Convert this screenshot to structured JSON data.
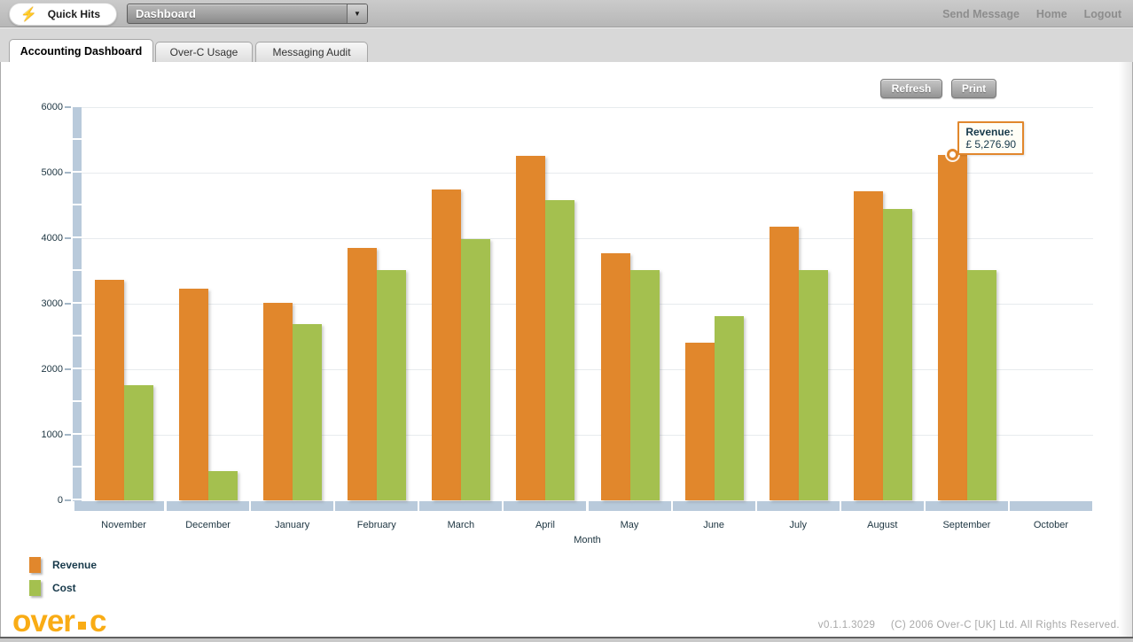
{
  "topbar": {
    "quick_hits_label": "Quick Hits",
    "dashboard_value": "Dashboard",
    "links": [
      "Send Message",
      "Home",
      "Logout"
    ]
  },
  "icons": {
    "lightning": "⚡",
    "dropdown_arrow": "▼"
  },
  "tabs": [
    {
      "label": "Accounting Dashboard",
      "active": true
    },
    {
      "label": "Over-C Usage",
      "active": false
    },
    {
      "label": "Messaging Audit",
      "active": false
    }
  ],
  "toolbar": {
    "refresh_label": "Refresh",
    "print_label": "Print"
  },
  "legend": [
    {
      "label": "Revenue",
      "color": "#e1872c"
    },
    {
      "label": "Cost",
      "color": "#a4c04f"
    }
  ],
  "footer": {
    "logo_left": "over",
    "logo_right": "c",
    "version": "v0.1.1.3029",
    "copyright": "(C) 2006 Over-C [UK] Ltd. All Rights Reserved."
  },
  "colors": {
    "revenue": "#e1872c",
    "cost": "#a4c04f",
    "axis": "#b9cadb",
    "gridline": "#e7ebee",
    "label_text": "#1c3440",
    "logo_orange": "#f9ac15"
  },
  "chart_data": {
    "type": "bar",
    "categories": [
      "November",
      "December",
      "January",
      "February",
      "March",
      "April",
      "May",
      "June",
      "July",
      "August",
      "September",
      "October"
    ],
    "series": [
      {
        "name": "Revenue",
        "color": "#e1872c",
        "values": [
          3360,
          3230,
          3010,
          3850,
          4750,
          5260,
          3770,
          2410,
          4180,
          4710,
          5276.9,
          0
        ]
      },
      {
        "name": "Cost",
        "color": "#a4c04f",
        "values": [
          1760,
          450,
          2690,
          3510,
          3980,
          4580,
          3510,
          2810,
          3510,
          4440,
          3510,
          0
        ]
      }
    ],
    "title": "",
    "xlabel": "Month",
    "ylabel": "",
    "ylim": [
      0,
      6000
    ],
    "ytick_interval": 1000,
    "grid": true,
    "legend_position": "bottom-left",
    "highlight": {
      "series": "Revenue",
      "category": "September",
      "value": 5276.9,
      "label": "Revenue:",
      "value_text": "£ 5,276.90"
    }
  }
}
